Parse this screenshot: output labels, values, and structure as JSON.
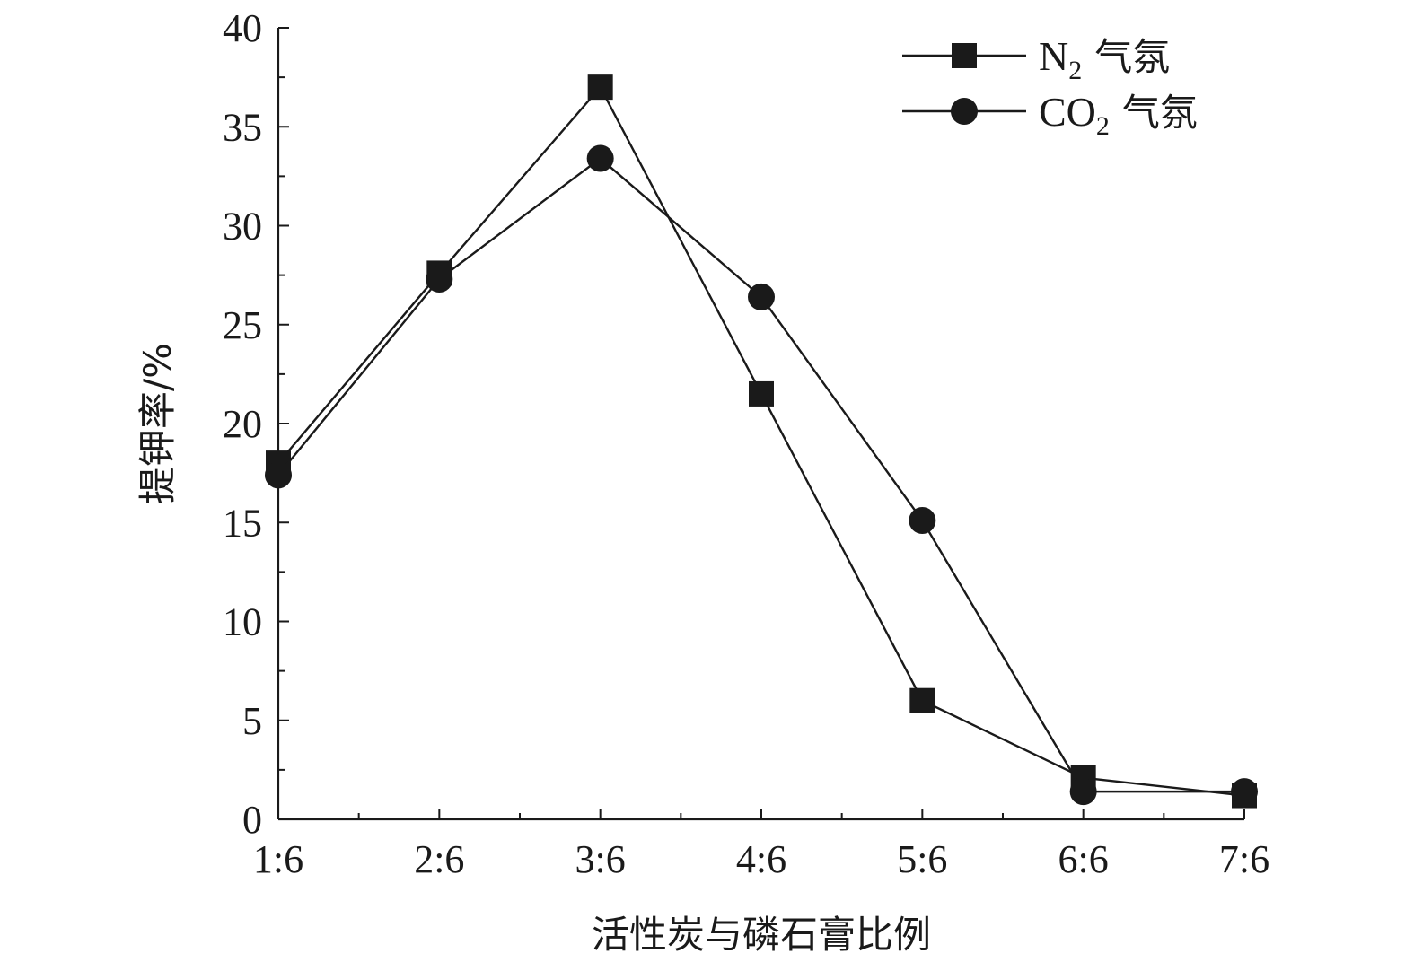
{
  "chart_data": {
    "type": "line",
    "categories": [
      "1:6",
      "2:6",
      "3:6",
      "4:6",
      "5:6",
      "6:6",
      "7:6"
    ],
    "xlabel": "活性炭与磷石膏比例",
    "ylabel": "提钾率/%",
    "ylim": [
      0,
      40
    ],
    "yticks": [
      0,
      5,
      10,
      15,
      20,
      25,
      30,
      35,
      40
    ],
    "grid": false,
    "legend_position": "top-right",
    "series": [
      {
        "name": "N2 气氛",
        "name_parts": {
          "base": "N",
          "sub": "2",
          "suffix": "气氛"
        },
        "marker": "square",
        "values": [
          18.0,
          27.6,
          37.0,
          21.5,
          6.0,
          2.1,
          1.2
        ]
      },
      {
        "name": "CO2 气氛",
        "name_parts": {
          "base": "CO",
          "sub": "2",
          "suffix": "气氛"
        },
        "marker": "circle",
        "values": [
          17.4,
          27.3,
          33.4,
          26.4,
          15.1,
          1.4,
          1.4
        ]
      }
    ],
    "colors": {
      "line": "#1a1a1a",
      "marker": "#1a1a1a"
    }
  }
}
